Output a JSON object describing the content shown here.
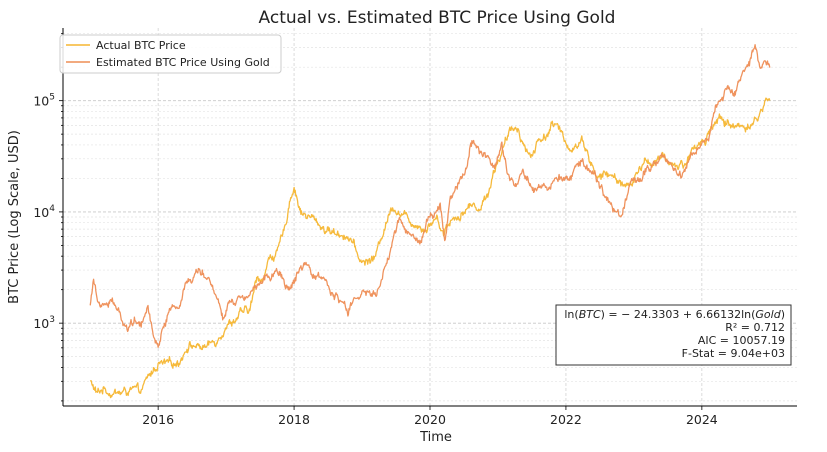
{
  "chart_data": {
    "type": "line",
    "title": "Actual vs. Estimated BTC Price Using Gold",
    "xlabel": "Time",
    "ylabel": "BTC Price (Log Scale, USD)",
    "xlim": [
      2014.6,
      2025.4
    ],
    "ylim": [
      180,
      450000
    ],
    "yscale": "log",
    "grid": true,
    "x_ticks": [
      {
        "value": 2016,
        "label": "2016"
      },
      {
        "value": 2018,
        "label": "2018"
      },
      {
        "value": 2020,
        "label": "2020"
      },
      {
        "value": 2022,
        "label": "2022"
      },
      {
        "value": 2024,
        "label": "2024"
      }
    ],
    "y_ticks": [
      {
        "value": 1000,
        "base": "10",
        "exp": "3"
      },
      {
        "value": 10000,
        "base": "10",
        "exp": "4"
      },
      {
        "value": 100000,
        "base": "10",
        "exp": "5"
      }
    ],
    "legend_position": "top-left",
    "series": [
      {
        "name": "Actual BTC Price",
        "color": "#f5b631",
        "x": [
          2015.0,
          2015.1,
          2015.2,
          2015.3,
          2015.45,
          2015.6,
          2015.75,
          2015.85,
          2016.0,
          2016.15,
          2016.3,
          2016.45,
          2016.55,
          2016.7,
          2016.85,
          2017.0,
          2017.1,
          2017.2,
          2017.35,
          2017.45,
          2017.55,
          2017.65,
          2017.75,
          2017.85,
          2017.95,
          2018.0,
          2018.1,
          2018.2,
          2018.3,
          2018.45,
          2018.6,
          2018.75,
          2018.85,
          2018.95,
          2019.05,
          2019.2,
          2019.35,
          2019.45,
          2019.55,
          2019.7,
          2019.85,
          2019.95,
          2020.1,
          2020.2,
          2020.3,
          2020.45,
          2020.6,
          2020.75,
          2020.85,
          2020.95,
          2021.0,
          2021.1,
          2021.2,
          2021.3,
          2021.4,
          2021.5,
          2021.6,
          2021.7,
          2021.8,
          2021.87,
          2021.95,
          2022.05,
          2022.15,
          2022.25,
          2022.35,
          2022.45,
          2022.6,
          2022.75,
          2022.85,
          2022.95,
          2023.05,
          2023.15,
          2023.3,
          2023.45,
          2023.6,
          2023.75,
          2023.85,
          2023.95,
          2024.05,
          2024.15,
          2024.25,
          2024.35,
          2024.45,
          2024.55,
          2024.65,
          2024.75,
          2024.85,
          2024.92,
          2025.0
        ],
        "values": [
          300,
          230,
          260,
          240,
          235,
          250,
          240,
          320,
          430,
          420,
          450,
          650,
          620,
          610,
          700,
          960,
          1050,
          1200,
          1300,
          2500,
          2600,
          4000,
          4200,
          6500,
          14000,
          17000,
          10000,
          9000,
          8500,
          7000,
          6500,
          6300,
          5500,
          3800,
          3500,
          4000,
          8000,
          11500,
          10000,
          8500,
          7500,
          7200,
          9000,
          6500,
          8500,
          9500,
          11500,
          11000,
          15000,
          24000,
          29000,
          40000,
          55000,
          58000,
          37000,
          32000,
          45000,
          48000,
          62000,
          57000,
          48000,
          38000,
          40000,
          45000,
          30000,
          20000,
          22000,
          19500,
          18000,
          16500,
          22000,
          28000,
          28500,
          30000,
          26000,
          27000,
          35000,
          42000,
          42000,
          62000,
          68000,
          63000,
          61000,
          58000,
          60000,
          62000,
          75000,
          96000,
          100000
        ]
      },
      {
        "name": "Estimated BTC Price Using Gold",
        "color": "#ee8d55",
        "x": [
          2015.0,
          2015.05,
          2015.1,
          2015.2,
          2015.3,
          2015.4,
          2015.55,
          2015.65,
          2015.75,
          2015.85,
          2015.95,
          2016.0,
          2016.1,
          2016.2,
          2016.3,
          2016.4,
          2016.5,
          2016.6,
          2016.7,
          2016.8,
          2016.9,
          2016.95,
          2017.05,
          2017.2,
          2017.35,
          2017.5,
          2017.65,
          2017.75,
          2017.85,
          2017.95,
          2018.05,
          2018.15,
          2018.25,
          2018.35,
          2018.45,
          2018.6,
          2018.7,
          2018.8,
          2018.9,
          2019.0,
          2019.1,
          2019.2,
          2019.3,
          2019.4,
          2019.55,
          2019.65,
          2019.75,
          2019.85,
          2019.95,
          2020.05,
          2020.15,
          2020.22,
          2020.3,
          2020.4,
          2020.5,
          2020.6,
          2020.65,
          2020.75,
          2020.85,
          2020.95,
          2021.05,
          2021.15,
          2021.25,
          2021.35,
          2021.45,
          2021.55,
          2021.65,
          2021.75,
          2021.85,
          2021.95,
          2022.05,
          2022.15,
          2022.22,
          2022.3,
          2022.4,
          2022.5,
          2022.6,
          2022.7,
          2022.8,
          2022.9,
          2023.0,
          2023.1,
          2023.2,
          2023.3,
          2023.4,
          2023.5,
          2023.6,
          2023.7,
          2023.8,
          2023.9,
          2024.0,
          2024.1,
          2024.2,
          2024.3,
          2024.4,
          2024.5,
          2024.6,
          2024.7,
          2024.8,
          2024.85,
          2024.92,
          2025.0
        ],
        "values": [
          1500,
          2600,
          1800,
          1500,
          1600,
          1300,
          900,
          1100,
          1000,
          1500,
          700,
          650,
          1000,
          1500,
          1300,
          2400,
          2500,
          3200,
          2800,
          2200,
          1500,
          1100,
          1600,
          1700,
          1900,
          2500,
          2700,
          2900,
          2300,
          2000,
          2700,
          3100,
          2700,
          2600,
          2500,
          1700,
          1500,
          1300,
          1600,
          1800,
          1900,
          1800,
          2500,
          4000,
          9000,
          7000,
          6500,
          5000,
          8000,
          10000,
          11000,
          5500,
          14000,
          18000,
          22000,
          40000,
          45000,
          35000,
          30000,
          25000,
          40000,
          21000,
          17000,
          25000,
          20000,
          15000,
          18000,
          17000,
          23000,
          20000,
          18000,
          26000,
          30000,
          28000,
          22000,
          17000,
          13000,
          10500,
          9500,
          14000,
          18000,
          20000,
          27000,
          25000,
          30000,
          28000,
          25000,
          22000,
          30000,
          35000,
          40000,
          48000,
          85000,
          110000,
          130000,
          125000,
          180000,
          220000,
          300000,
          180000,
          210000,
          200000
        ]
      }
    ],
    "annotations": {
      "equation": {
        "lhs_fn": "ln",
        "lhs_var": "BTC",
        "intercept": "− 24.3303",
        "coef": "6.66132",
        "rhs_fn": "ln",
        "rhs_var": "Gold"
      },
      "r_squared": "R² = 0.712",
      "aic": "AIC = 10057.19",
      "f_stat": "F-Stat = 9.04e+03"
    }
  }
}
